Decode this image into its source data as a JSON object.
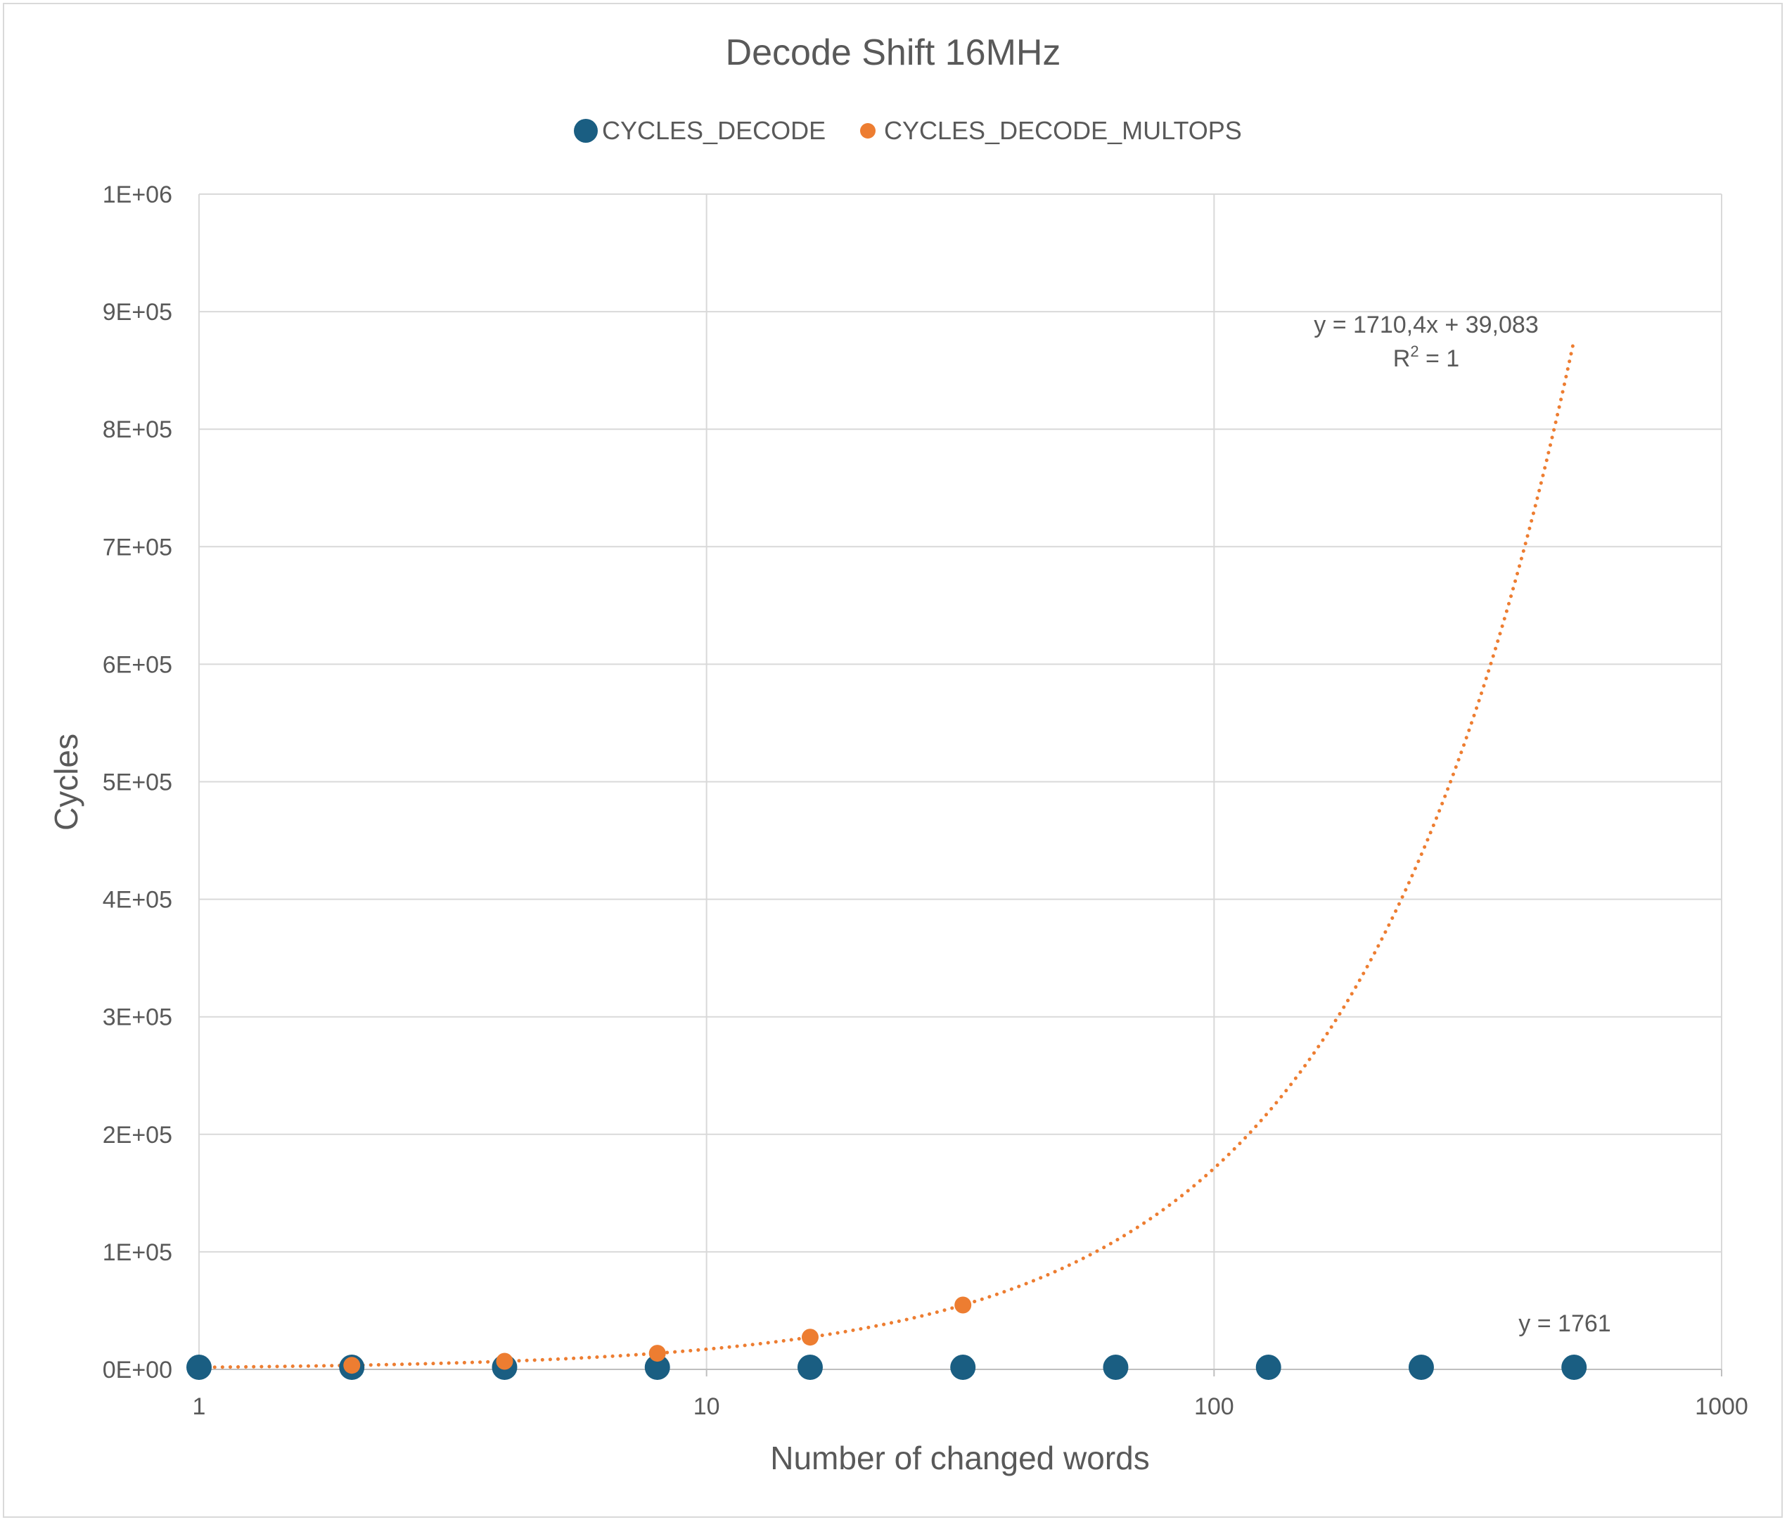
{
  "chart_data": {
    "type": "scatter",
    "title": "Decode Shift 16MHz",
    "xlabel": "Number of changed words",
    "ylabel": "Cycles",
    "x_scale": "log",
    "xlim": [
      1,
      1000
    ],
    "ylim": [
      0,
      1000000
    ],
    "x_ticks": [
      1,
      10,
      100,
      1000
    ],
    "x_tick_labels": [
      "1",
      "10",
      "100",
      "1000"
    ],
    "y_ticks": [
      0,
      100000,
      200000,
      300000,
      400000,
      500000,
      600000,
      700000,
      800000,
      900000,
      1000000
    ],
    "y_tick_labels": [
      "0E+00",
      "1E+05",
      "2E+05",
      "3E+05",
      "4E+05",
      "5E+05",
      "6E+05",
      "7E+05",
      "8E+05",
      "9E+05",
      "1E+06"
    ],
    "grid": true,
    "legend_position": "top",
    "series": [
      {
        "name": "CYCLES_DECODE",
        "color": "#1a5e82",
        "marker": "large-circle",
        "x": [
          1,
          2,
          4,
          8,
          16,
          32,
          64,
          128,
          256,
          512
        ],
        "y": [
          1761,
          1761,
          1761,
          1761,
          1761,
          1761,
          1761,
          1761,
          1761,
          1761
        ],
        "trendline": {
          "type": "linear",
          "slope": 0,
          "intercept": 1761,
          "x_range": [
            1,
            512
          ],
          "label": "y = 1761",
          "show_line": false
        }
      },
      {
        "name": "CYCLES_DECODE_MULTOPS",
        "color": "#ed7d31",
        "marker": "small-circle",
        "x": [
          2,
          4,
          8,
          16,
          32
        ],
        "y": [
          3460,
          6880,
          13720,
          27400,
          54770
        ],
        "trendline": {
          "type": "linear",
          "slope": 1710.4,
          "intercept": 39.083,
          "x_range": [
            1,
            512
          ],
          "label": "y = 1710,4x + 39,083",
          "r2_base": "R",
          "r2_exp": "2",
          "r2_value": " = 1",
          "style": "dotted"
        }
      }
    ]
  }
}
